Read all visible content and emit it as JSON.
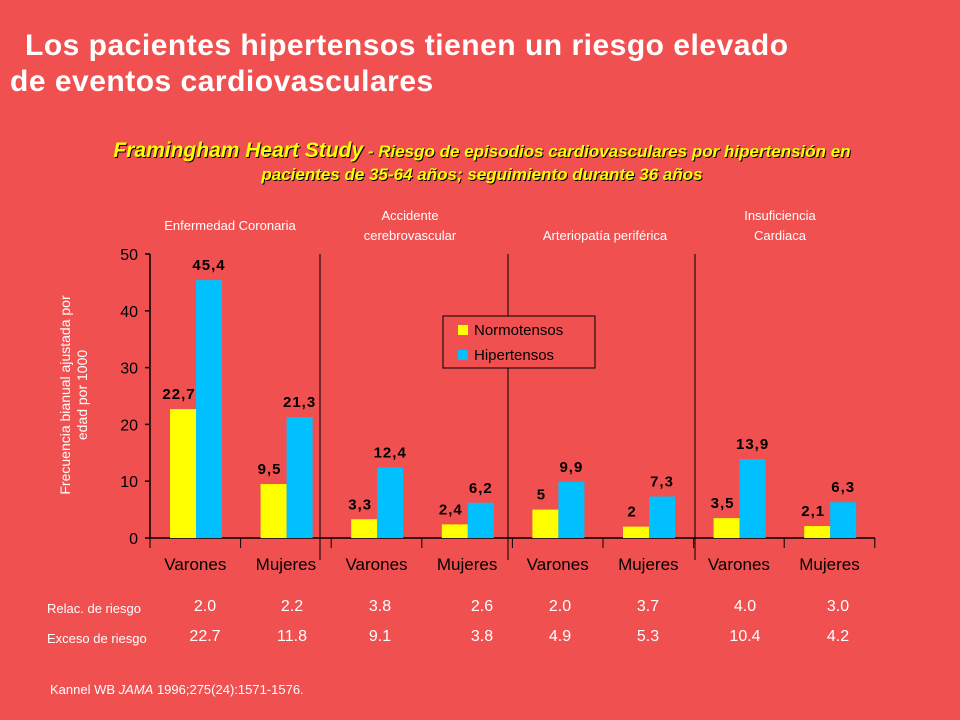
{
  "title": {
    "line1": "Los pacientes hipertensos tienen un riesgo elevado",
    "line2": "de eventos cardiovasculares"
  },
  "subtitle": {
    "study": "Framingham Heart Study",
    "desc1": " - Riesgo de episodios cardiovasculares por hipertensión en",
    "desc2": "pacientes de 35-64 años; seguimiento durante 36 años"
  },
  "categories": {
    "cat1": "Enfermedad  Coronaria",
    "cat2_l1": "Accidente",
    "cat2_l2": "cerebrovascular",
    "cat3": "Arteriopatía  periférica",
    "cat4_l1": "Insuficiencia",
    "cat4_l2": "Cardiaca"
  },
  "stats": {
    "relac_label": "Relac. de riesgo",
    "exceso_label": "Exceso de riesgo",
    "relac": [
      "2.0",
      "2.2",
      "3.8",
      "2.6",
      "2.0",
      "3.7",
      "4.0",
      "3.0"
    ],
    "exceso": [
      "22.7",
      "11.8",
      "9.1",
      "3.8",
      "4.9",
      "5.3",
      "10.4",
      "4.2"
    ]
  },
  "reference": {
    "author": "Kannel WB ",
    "journal": "JAMA",
    "rest": " 1996;275(24):1571-1576."
  },
  "colors": {
    "background": "#f05050",
    "normotensos": "#ffff00",
    "hipertensos": "#00c0ff"
  },
  "chart_data": {
    "type": "bar",
    "ylabel": "Frecuencia bianual ajustada por edad por 1000",
    "ylim": [
      0,
      50
    ],
    "yticks": [
      "0",
      "10",
      "20",
      "30",
      "40",
      "50"
    ],
    "categories": [
      "Varones",
      "Mujeres",
      "Varones",
      "Mujeres",
      "Varones",
      "Mujeres",
      "Varones",
      "Mujeres"
    ],
    "series": [
      {
        "name": "Normotensos",
        "values": [
          22.7,
          9.5,
          3.3,
          2.4,
          5,
          2,
          3.5,
          2.1
        ],
        "labels": [
          "22,7",
          "9,5",
          "3,3",
          "2,4",
          "5",
          "2",
          "3,5",
          "2,1"
        ]
      },
      {
        "name": "Hipertensos",
        "values": [
          45.4,
          21.3,
          12.4,
          6.2,
          9.9,
          7.3,
          13.9,
          6.3
        ],
        "labels": [
          "45,4",
          "21,3",
          "12,4",
          "6,2",
          "9,9",
          "7,3",
          "13,9",
          "6,3"
        ]
      }
    ],
    "legend": [
      "Normotensos",
      "Hipertensos"
    ],
    "legend_position": "center-top"
  }
}
